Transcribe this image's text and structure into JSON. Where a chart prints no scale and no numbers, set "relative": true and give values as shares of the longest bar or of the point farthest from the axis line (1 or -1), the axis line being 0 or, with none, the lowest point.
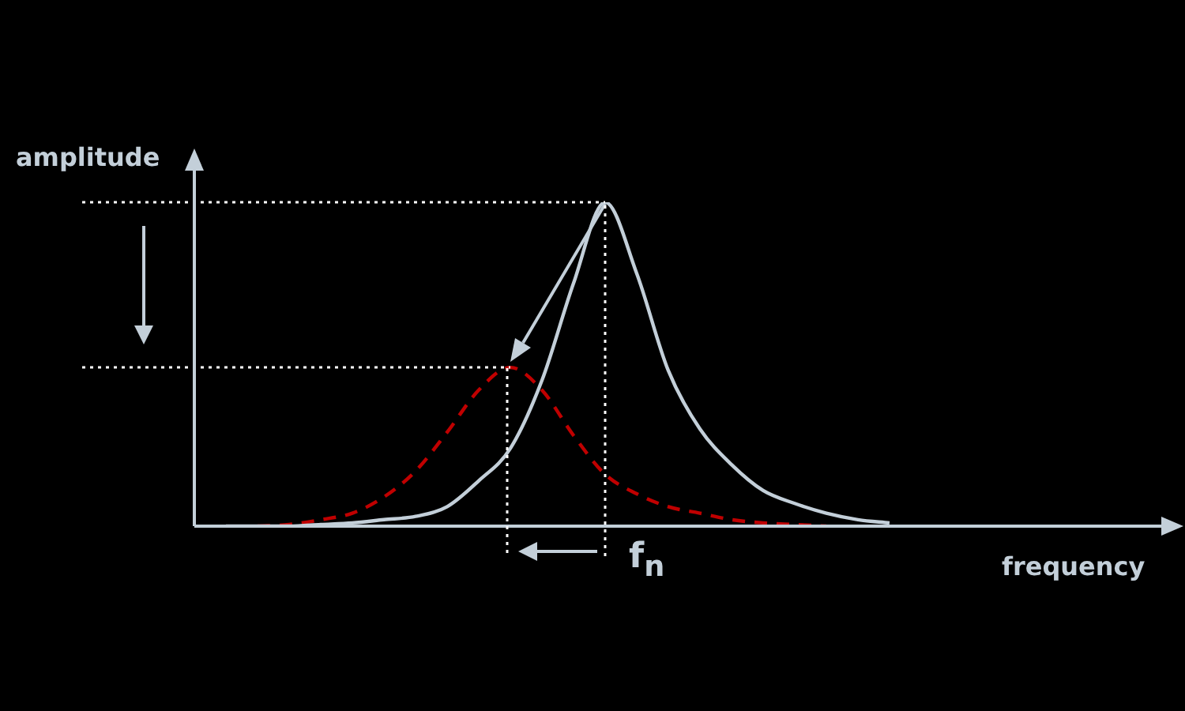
{
  "chart_data": {
    "type": "line",
    "relative": true,
    "xlabel": "frequency",
    "ylabel": "amplitude",
    "annotations": [
      "f$_{n}$"
    ],
    "categories": [
      null,
      null,
      null,
      null,
      null,
      null,
      null,
      null,
      null,
      null,
      null,
      null,
      null,
      null,
      null,
      null,
      null,
      null,
      null,
      null,
      null,
      null,
      null,
      null,
      null,
      null,
      null,
      null,
      null,
      null,
      null,
      null
    ],
    "series": [
      {
        "color": "#c3cfd9",
        "line_style": "solid",
        "values": [
          null,
          0,
          0,
          0,
          0.005,
          0.01,
          0.02,
          0.03,
          0.06,
          0.14,
          0.24,
          0.45,
          0.75,
          1,
          0.78,
          0.48,
          0.3,
          0.19,
          0.11,
          0.07,
          0.04,
          0.02,
          0.01,
          null,
          null,
          null,
          null,
          null,
          null,
          null,
          null,
          null
        ]
      },
      {
        "color": "#c00000",
        "line_style": "dashed",
        "values": [
          null,
          null,
          0,
          0.005,
          0.02,
          0.04,
          0.09,
          0.17,
          0.29,
          0.42,
          0.49,
          0.42,
          0.28,
          0.16,
          0.1,
          0.06,
          0.04,
          0.02,
          0.01,
          0.005,
          0,
          null,
          null,
          null,
          null,
          null,
          null,
          null,
          null,
          null,
          null,
          null
        ]
      }
    ],
    "ref_lines": [
      {
        "axis": "y",
        "value": 1,
        "color": "#ffffff",
        "line_style": "dotted"
      },
      {
        "axis": "y",
        "value": 0.49,
        "color": "#ffffff",
        "line_style": "dotted"
      }
    ],
    "legend": false,
    "marker": "none"
  }
}
